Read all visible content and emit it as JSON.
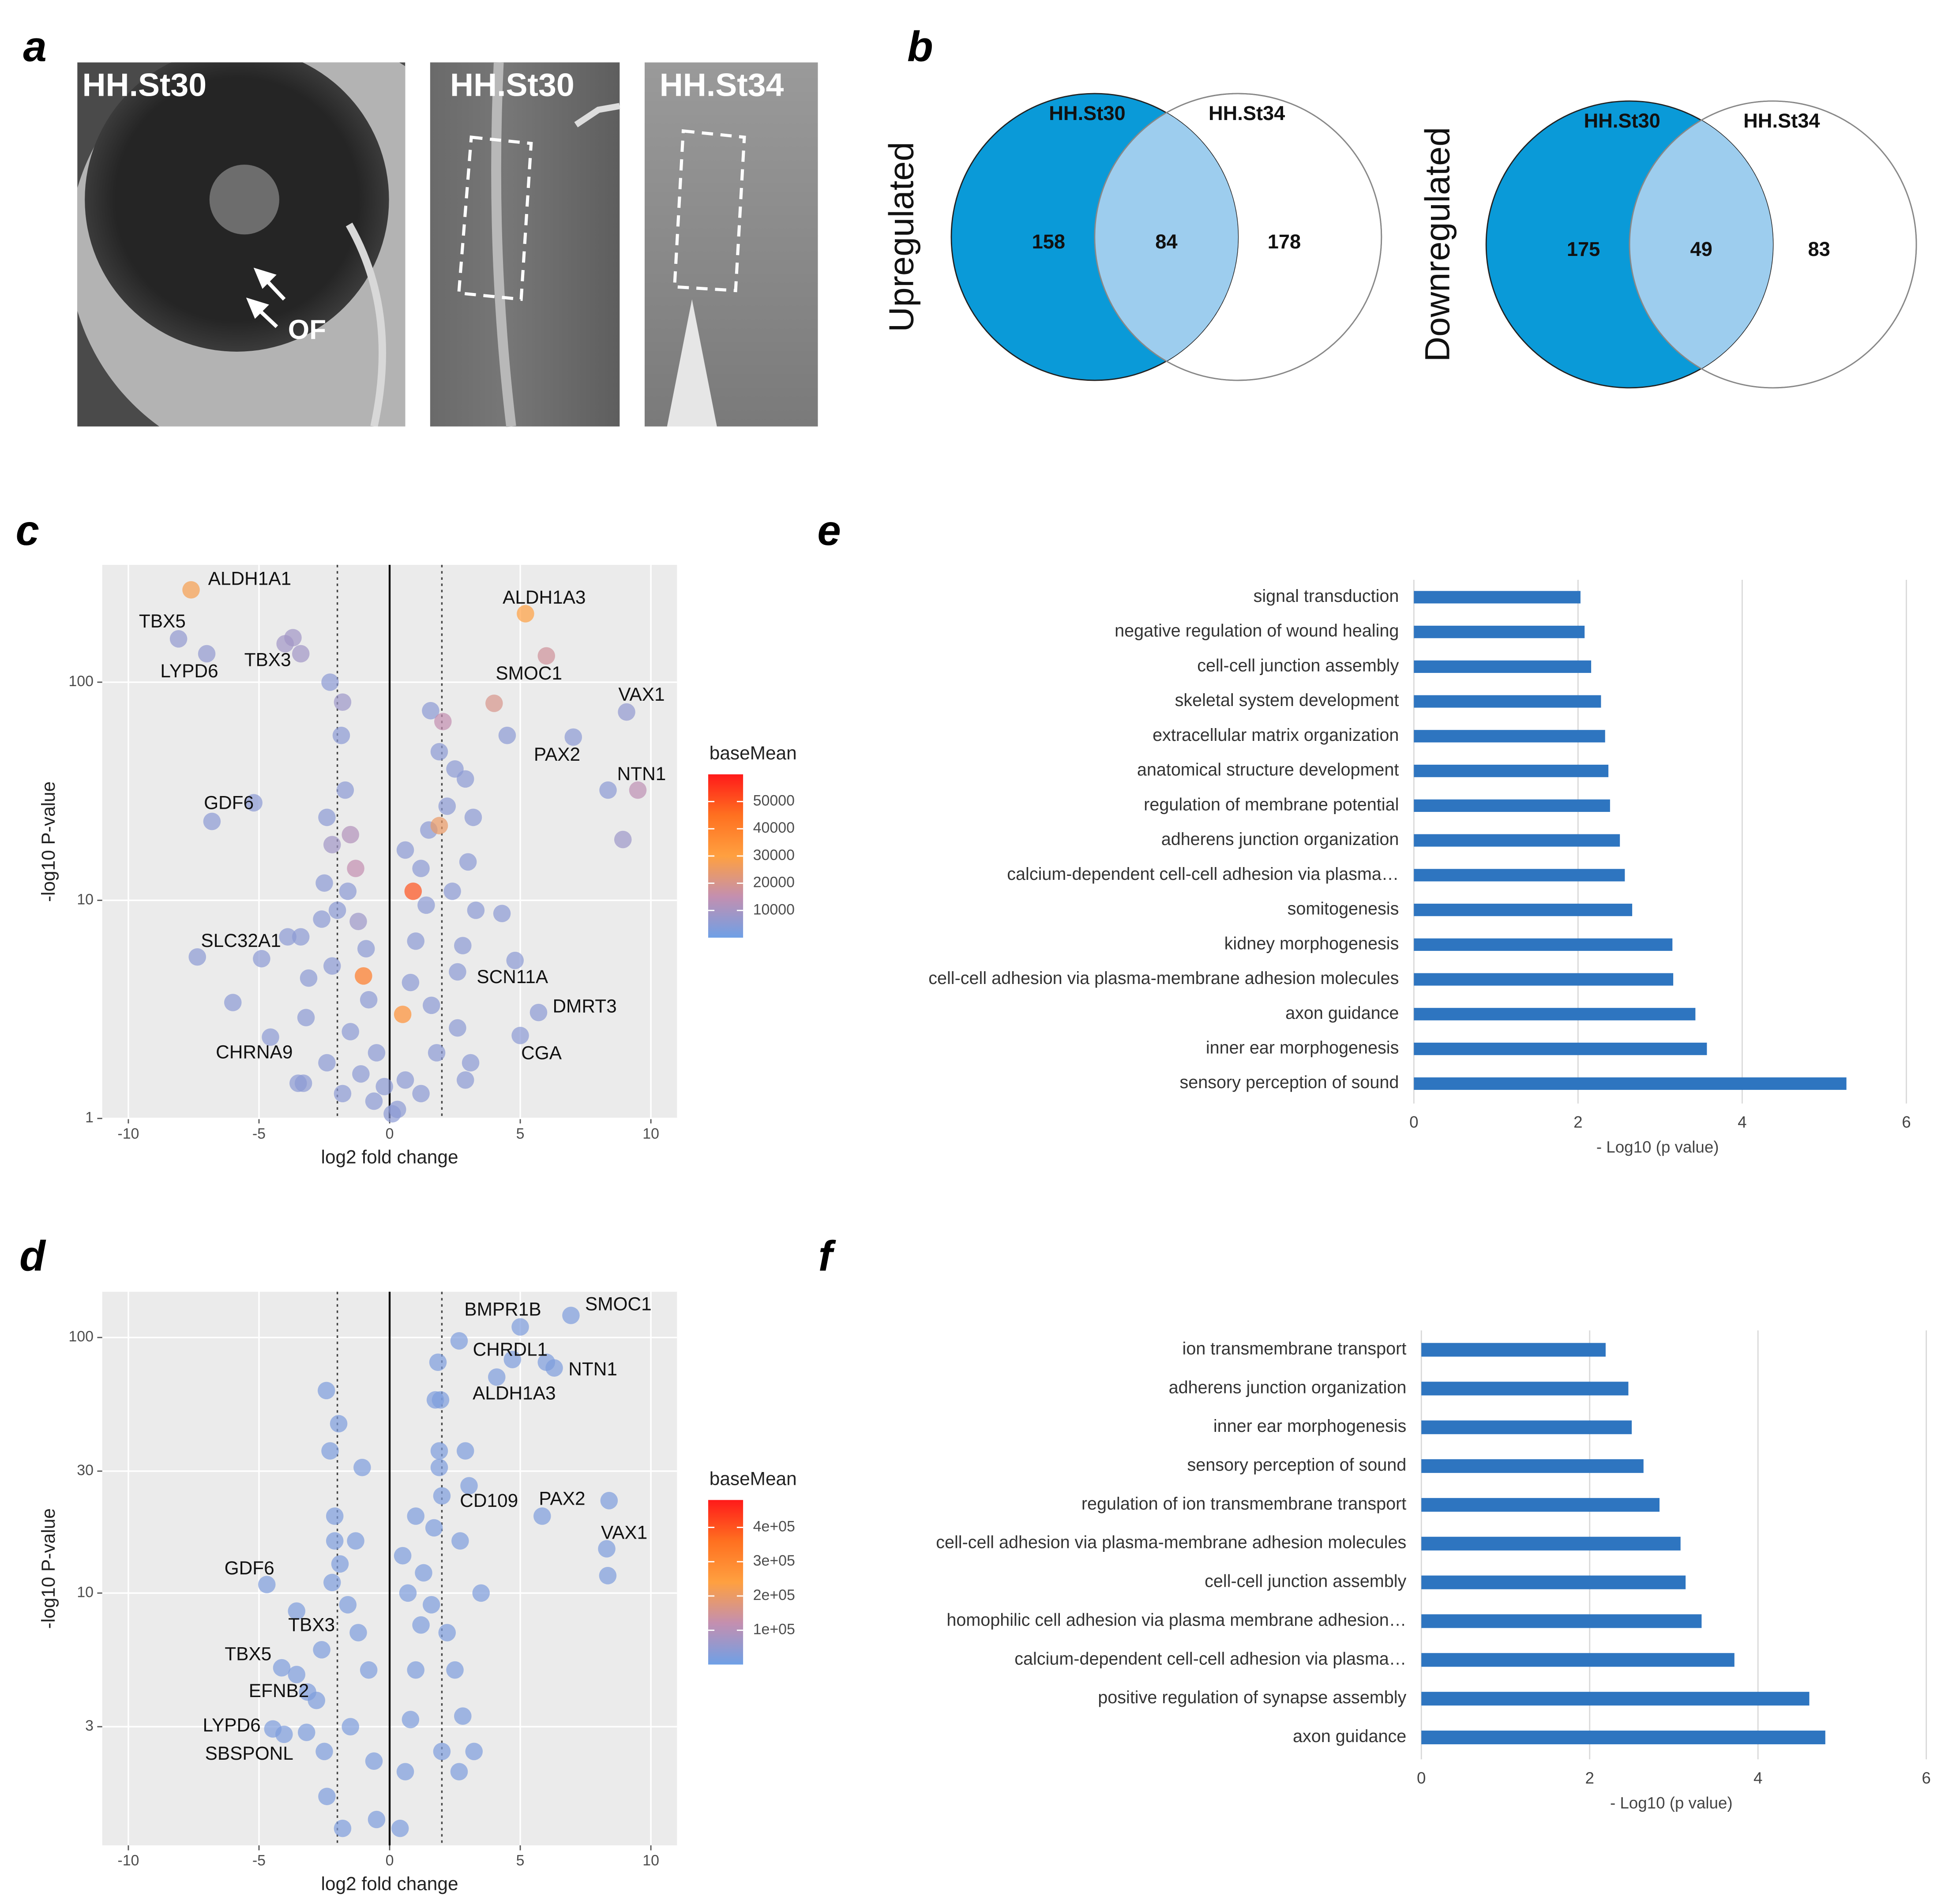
{
  "panel_labels": [
    "a",
    "b",
    "c",
    "d",
    "e",
    "f"
  ],
  "images": [
    {
      "label": "HH.St30"
    },
    {
      "label": "HH.St30"
    },
    {
      "label": "HH.St34"
    }
  ],
  "image_annotation": "OF",
  "chart_data": [
    {
      "type": "venn",
      "label": "Upregulated",
      "sets": [
        "HH.St30",
        "HH.St34"
      ],
      "values": [
        158,
        84,
        178
      ],
      "colors": [
        "#0a9ad8",
        "#9dcdee",
        "#ffffff"
      ]
    },
    {
      "type": "venn",
      "label": "Downregulated",
      "sets": [
        "HH.St30",
        "HH.St34"
      ],
      "values": [
        175,
        49,
        83
      ],
      "colors": [
        "#0a9ad8",
        "#9dcdee",
        "#ffffff"
      ]
    },
    {
      "type": "scatter",
      "xlabel": "log2 fold change",
      "ylabel": "-log10 P-value",
      "ylog": true,
      "grid": true,
      "xlim": [
        -11,
        11
      ],
      "xticks": [
        -10,
        -5,
        0,
        5,
        10
      ],
      "ylim": [
        1,
        345
      ],
      "yticks": [
        1,
        10,
        100
      ],
      "vlines": [
        {
          "x": -2,
          "style": "dotted"
        },
        {
          "x": 0,
          "style": "solid"
        },
        {
          "x": 2,
          "style": "dotted"
        }
      ],
      "colorbar": {
        "title": "baseMean",
        "clim": [
          0,
          60000
        ],
        "ticks": [
          10000,
          20000,
          30000,
          40000,
          50000
        ],
        "colors": [
          "#6fa0e6",
          "#c38fb0",
          "#ffa040",
          "#ff7020",
          "#ff1a1a"
        ]
      },
      "x": [
        -7.6,
        -8.08,
        -7.0,
        -4.0,
        5.2,
        6.0,
        9.07,
        7.03,
        9.5,
        -5.2,
        -7.36,
        2.6,
        5.7,
        5.0,
        -4.56,
        -3.7,
        -3.4,
        -2.28,
        -1.8,
        -1.85,
        1.57,
        2.04,
        4.5,
        4.0,
        -1.7,
        8.36,
        8.93,
        3.2,
        4.3,
        4.8,
        -6.0,
        -3.5,
        -3.3,
        -6.8,
        -4.9,
        -3.9,
        -3.4,
        -3.1,
        -3.2,
        -2.4,
        -2.2,
        -1.5,
        -1.3,
        -2.5,
        -2.0,
        -1.2,
        -0.9,
        -2.2,
        -1.0,
        -0.8,
        -1.5,
        -0.5,
        -2.4,
        -1.8,
        -0.6,
        0.3,
        0.6,
        0.5,
        0.8,
        1.0,
        0.9,
        1.2,
        0.6,
        1.5,
        1.9,
        2.2,
        2.5,
        2.9,
        1.9,
        3.0,
        3.3,
        2.8,
        1.6,
        2.6,
        1.8,
        2.9,
        3.1,
        1.2,
        0.1,
        -0.2,
        -1.1,
        1.4,
        -1.6,
        -2.6,
        2.4
      ],
      "y": [
        265,
        158,
        135,
        150,
        206,
        132,
        73,
        56,
        32,
        28,
        5.5,
        4.7,
        3.06,
        2.4,
        2.36,
        160,
        135,
        100,
        81,
        57,
        74,
        66,
        57,
        80,
        32,
        32,
        19,
        24,
        8.7,
        5.3,
        3.4,
        1.45,
        1.45,
        23,
        5.4,
        6.8,
        6.8,
        4.4,
        2.9,
        24,
        18,
        20,
        14,
        12,
        9,
        8,
        6,
        5,
        4.5,
        3.5,
        2.5,
        2,
        1.8,
        1.3,
        1.2,
        1.1,
        1.5,
        3,
        4.2,
        6.5,
        11,
        14,
        17,
        21,
        22,
        27,
        40,
        36,
        48,
        15,
        9,
        6.2,
        3.3,
        2.6,
        2,
        1.5,
        1.8,
        1.3,
        1.05,
        1.4,
        1.6,
        9.5,
        11,
        8.2,
        11
      ],
      "baseMean": [
        28000,
        6000,
        6000,
        9000,
        30000,
        18000,
        6000,
        5000,
        14000,
        5000,
        5000,
        5000,
        5000,
        5000,
        5000,
        9000,
        9000,
        5000,
        8000,
        5000,
        5000,
        15000,
        5000,
        20000,
        5000,
        5000,
        8000,
        5000,
        5000,
        5000,
        5000,
        5000,
        5000,
        5000,
        5000,
        5000,
        5000,
        5000,
        5000,
        5000,
        9000,
        12000,
        15000,
        5000,
        5000,
        8000,
        5000,
        5000,
        42000,
        5000,
        5000,
        5000,
        5000,
        5000,
        5000,
        5000,
        5000,
        35000,
        5000,
        5000,
        50000,
        5000,
        5000,
        5000,
        25000,
        5000,
        5000,
        5000,
        5000,
        5000,
        5000,
        5000,
        5000,
        5000,
        5000,
        5000,
        5000,
        5000,
        5000,
        5000,
        5000,
        5000,
        5000,
        5000,
        5000
      ],
      "point_labels": [
        "ALDH1A1",
        "TBX5",
        "LYPD6",
        "TBX3",
        "ALDH1A3",
        "SMOC1",
        "VAX1",
        "PAX2",
        "NTN1",
        "GDF6",
        "SLC32A1",
        "SCN11A",
        "DMRT3",
        "CGA",
        "CHRNA9",
        null,
        null,
        null,
        null,
        null,
        null,
        null,
        null,
        null,
        null,
        null,
        null,
        null,
        null,
        null,
        null,
        null,
        null,
        null,
        null,
        null,
        null,
        null,
        null,
        null,
        null,
        null,
        null,
        null,
        null,
        null,
        null,
        null,
        null,
        null,
        null,
        null,
        null,
        null,
        null,
        null,
        null,
        null,
        null,
        null,
        null,
        null,
        null,
        null,
        null,
        null,
        null,
        null,
        null,
        null,
        null,
        null,
        null,
        null,
        null,
        null,
        null,
        null,
        null,
        null,
        null,
        null,
        null,
        null,
        null
      ]
    },
    {
      "type": "scatter",
      "xlabel": "log2 fold change",
      "ylabel": "-log10 P-value",
      "ylog": true,
      "grid": true,
      "xlim": [
        -11,
        11
      ],
      "xticks": [
        -10,
        -5,
        0,
        5,
        10
      ],
      "ylim": [
        1.03,
        151
      ],
      "yticks": [
        3,
        10,
        30,
        100
      ],
      "vlines": [
        {
          "x": -2,
          "style": "dotted"
        },
        {
          "x": 0,
          "style": "solid"
        },
        {
          "x": 2,
          "style": "dotted"
        }
      ],
      "colorbar": {
        "title": "baseMean",
        "clim": [
          0,
          480000
        ],
        "ticks": [
          {
            "value": 100000,
            "label": "1e+05"
          },
          {
            "value": 200000,
            "label": "2e+05"
          },
          {
            "value": 300000,
            "label": "3e+05"
          },
          {
            "value": 400000,
            "label": "4e+05"
          }
        ],
        "colors": [
          "#6fa0e6",
          "#c38fb0",
          "#ffa040",
          "#ff7020",
          "#ff1a1a"
        ]
      },
      "x": [
        6.94,
        5.0,
        2.66,
        6.3,
        4.1,
        3.04,
        5.84,
        8.31,
        -4.7,
        -3.56,
        -4.13,
        -3.14,
        -4.47,
        -3.18,
        8.4,
        8.35,
        6.0,
        4.7,
        1.85,
        1.75,
        1.95,
        -2.42,
        -1.95,
        -2.28,
        -1.05,
        2.9,
        1.9,
        1.9,
        3.5,
        3.23,
        2.66,
        -2.1,
        -1.3,
        -2.1,
        1.0,
        2.0,
        1.7,
        2.7,
        -1.9,
        -2.2,
        -1.6,
        -1.2,
        -0.8,
        -2.6,
        -2.8,
        -2.5,
        -1.5,
        -0.6,
        -2.4,
        -1.8,
        -0.5,
        0.4,
        0.6,
        0.8,
        1.0,
        1.2,
        0.7,
        1.3,
        0.5,
        1.6,
        2.2,
        2.5,
        2.8,
        2.0,
        -4.04,
        -3.56
      ],
      "y": [
        122,
        110,
        97,
        76,
        70,
        26.3,
        20,
        14.9,
        10.8,
        8.5,
        5.1,
        4.1,
        2.94,
        2.85,
        23,
        11.7,
        80,
        82,
        80,
        57,
        57,
        62,
        46,
        36,
        31,
        36,
        36,
        31,
        10,
        2.4,
        2,
        20,
        16,
        16,
        20,
        24,
        18,
        16,
        13,
        11,
        9,
        7,
        5,
        6,
        3.8,
        2.4,
        3,
        2.2,
        1.6,
        1.2,
        1.3,
        1.2,
        2,
        3.2,
        5,
        7.5,
        10,
        12,
        14,
        9,
        7,
        5,
        3.3,
        2.4,
        2.8,
        4.8
      ],
      "baseMean": [
        20000,
        20000,
        20000,
        20000,
        20000,
        20000,
        20000,
        20000,
        20000,
        20000,
        20000,
        20000,
        20000,
        20000,
        20000,
        20000,
        20000,
        20000,
        20000,
        20000,
        20000,
        20000,
        20000,
        20000,
        20000,
        20000,
        20000,
        20000,
        20000,
        20000,
        20000,
        20000,
        20000,
        20000,
        20000,
        20000,
        20000,
        20000,
        20000,
        20000,
        20000,
        20000,
        20000,
        20000,
        20000,
        20000,
        20000,
        20000,
        20000,
        20000,
        20000,
        20000,
        20000,
        20000,
        20000,
        20000,
        20000,
        20000,
        20000,
        20000,
        20000,
        20000,
        20000,
        20000,
        20000,
        20000
      ],
      "point_labels": [
        "SMOC1",
        "BMPR1B",
        "CHRDL1",
        "NTN1",
        "ALDH1A3",
        "CD109",
        "PAX2",
        "VAX1",
        "GDF6",
        "TBX3",
        "TBX5",
        "EFNB2",
        "LYPD6",
        "SBSPONL",
        null,
        null,
        null,
        null,
        null,
        null,
        null,
        null,
        null,
        null,
        null,
        null,
        null,
        null,
        null,
        null,
        null,
        null,
        null,
        null,
        null,
        null,
        null,
        null,
        null,
        null,
        null,
        null,
        null,
        null,
        null,
        null,
        null,
        null,
        null,
        null,
        null,
        null,
        null,
        null,
        null,
        null,
        null,
        null,
        null,
        null,
        null,
        null,
        null,
        null,
        null,
        null
      ]
    },
    {
      "type": "barh",
      "xlabel": "- Log10 (p value)",
      "grid": true,
      "color": "#2e75c0",
      "xlim": [
        0,
        6
      ],
      "xticks": [
        0,
        2,
        4,
        6
      ],
      "categories": [
        "signal transduction",
        "negative regulation of wound healing",
        "cell-cell junction assembly",
        "skeletal system development",
        "extracellular matrix organization",
        "anatomical structure development",
        "regulation of membrane potential",
        "adherens junction organization",
        "calcium-dependent cell-cell adhesion via plasma…",
        "somitogenesis",
        "kidney morphogenesis",
        "cell-cell adhesion via plasma-membrane adhesion molecules",
        "axon guidance",
        "inner ear morphogenesis",
        "sensory perception of sound"
      ],
      "values": [
        2.03,
        2.08,
        2.16,
        2.28,
        2.33,
        2.37,
        2.39,
        2.51,
        2.57,
        2.66,
        3.15,
        3.16,
        3.43,
        3.57,
        5.27
      ]
    },
    {
      "type": "barh",
      "xlabel": "- Log10 (p value)",
      "grid": true,
      "color": "#2e75c0",
      "xlim": [
        0,
        6
      ],
      "xticks": [
        0,
        2,
        4,
        6
      ],
      "categories": [
        "ion transmembrane transport",
        "adherens junction organization",
        "inner ear morphogenesis",
        "sensory perception of sound",
        "regulation of ion transmembrane transport",
        "cell-cell adhesion via plasma-membrane adhesion molecules",
        "cell-cell junction assembly",
        "homophilic cell adhesion via plasma membrane adhesion…",
        "calcium-dependent cell-cell adhesion via plasma…",
        "positive regulation of synapse assembly",
        "axon guidance"
      ],
      "values": [
        2.19,
        2.46,
        2.5,
        2.64,
        2.83,
        3.08,
        3.14,
        3.33,
        3.72,
        4.61,
        4.8
      ]
    }
  ]
}
